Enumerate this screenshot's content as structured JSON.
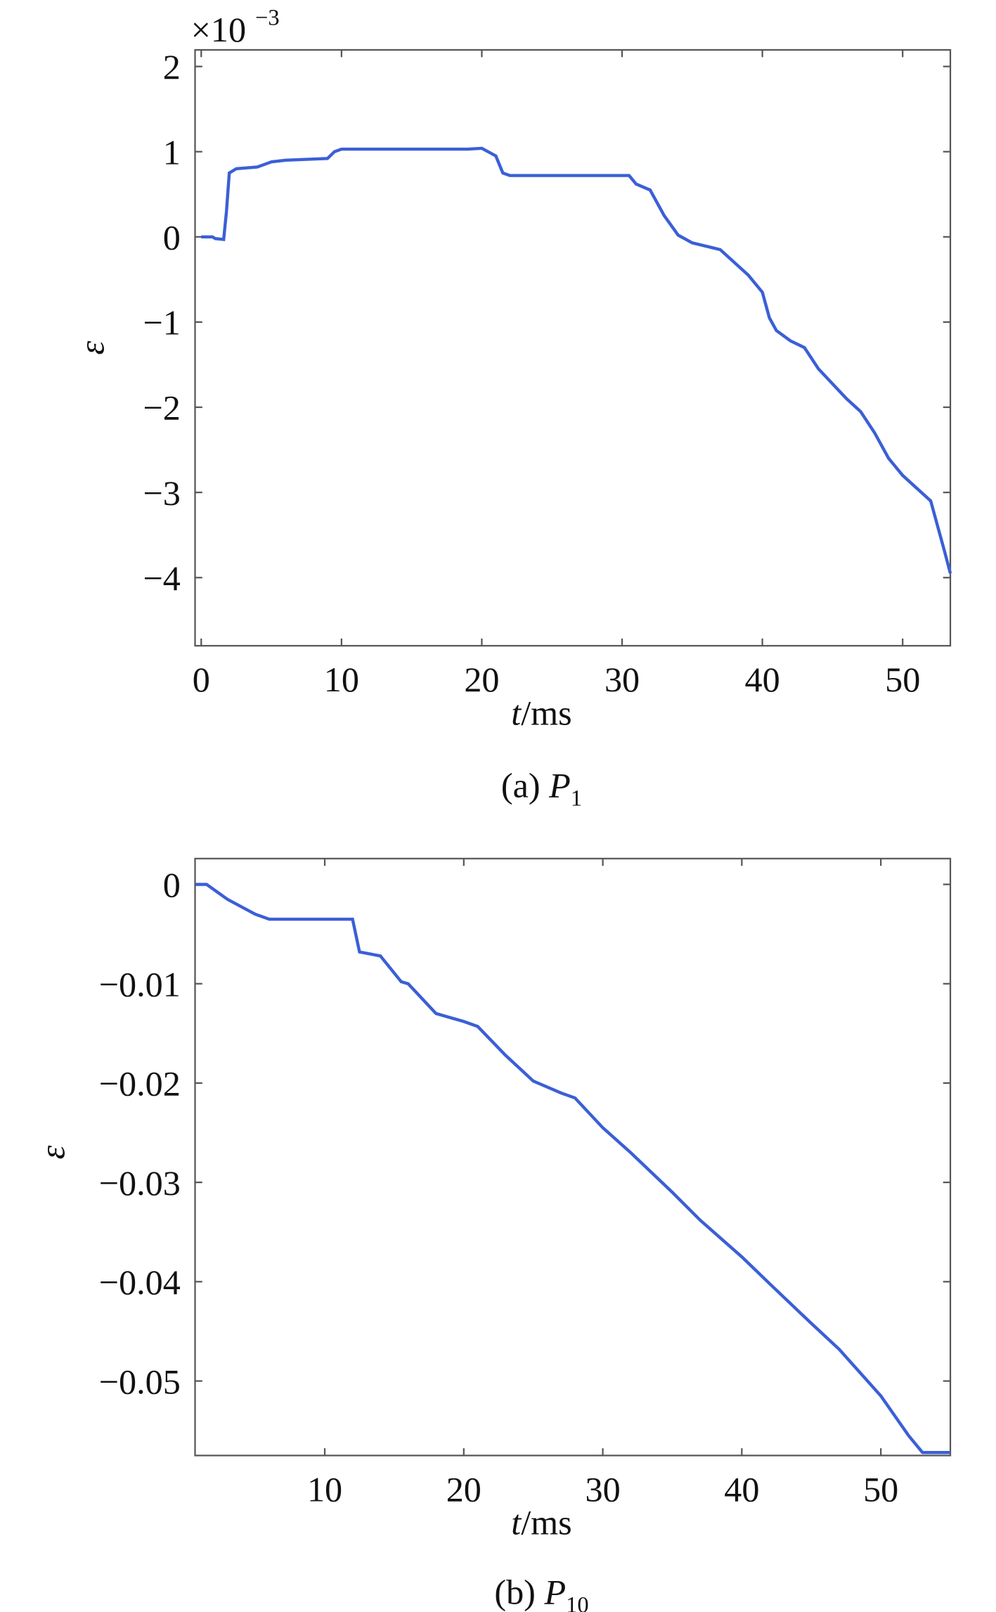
{
  "chart_data": [
    {
      "type": "line",
      "x": [
        0,
        0.8,
        1,
        1.6,
        1.8,
        2,
        2.5,
        4,
        5,
        6,
        9,
        9.5,
        10,
        19,
        20,
        21,
        21.5,
        22,
        30.5,
        31,
        32,
        33,
        34,
        35,
        37,
        38,
        39,
        40,
        40.5,
        41,
        42,
        43,
        44,
        46,
        47,
        48,
        49,
        50,
        52,
        53,
        53.4
      ],
      "series": [
        {
          "color": "#3b5fd6",
          "values": [
            0,
            0,
            -0.02,
            -0.03,
            0.3,
            0.75,
            0.8,
            0.82,
            0.88,
            0.9,
            0.92,
            1.0,
            1.03,
            1.03,
            1.04,
            0.95,
            0.75,
            0.72,
            0.72,
            0.62,
            0.55,
            0.25,
            0.02,
            -0.07,
            -0.15,
            -0.3,
            -0.45,
            -0.65,
            -0.95,
            -1.1,
            -1.22,
            -1.3,
            -1.55,
            -1.9,
            -2.05,
            -2.3,
            -2.6,
            -2.8,
            -3.1,
            -3.7,
            -3.95
          ]
        }
      ],
      "xlim": [
        -0.44,
        53.4
      ],
      "ylim": [
        -4.8,
        2.195
      ],
      "xticks": [
        0,
        10,
        20,
        30,
        40,
        50
      ],
      "yticks": [
        2,
        1,
        0,
        {
          "value": -1,
          "label": "−1"
        },
        {
          "value": -2,
          "label": "−2"
        },
        {
          "value": -3,
          "label": "−3"
        },
        {
          "value": -4,
          "label": "−4"
        }
      ],
      "y_multiplier_base": "×10",
      "y_multiplier_exponent": "−3",
      "xlabel_var": "t",
      "xlabel_unit": "/ms",
      "ylabel": "ε",
      "caption_label": "(a)",
      "caption_symbol": "P",
      "caption_subscript": "1"
    },
    {
      "type": "line",
      "x": [
        0.7,
        1.5,
        3,
        5,
        6,
        12,
        12.5,
        14,
        15.5,
        16,
        18,
        20,
        21,
        23,
        25,
        27,
        28,
        30,
        32,
        35,
        37,
        40,
        42,
        45,
        47,
        50,
        52,
        53,
        55
      ],
      "series": [
        {
          "color": "#3b5fd6",
          "values": [
            0,
            0,
            -0.0015,
            -0.003,
            -0.0035,
            -0.0035,
            -0.0068,
            -0.0072,
            -0.0098,
            -0.01,
            -0.013,
            -0.0138,
            -0.0143,
            -0.0172,
            -0.0198,
            -0.021,
            -0.0215,
            -0.0245,
            -0.027,
            -0.031,
            -0.0338,
            -0.0375,
            -0.0402,
            -0.0442,
            -0.0468,
            -0.0515,
            -0.0555,
            -0.0572,
            -0.0572
          ]
        }
      ],
      "xlim": [
        0.67,
        55.0
      ],
      "ylim": [
        -0.0575,
        0.0026
      ],
      "xticks": [
        10,
        20,
        30,
        40,
        50
      ],
      "yticks": [
        0,
        {
          "value": -0.01,
          "label": "−0.01"
        },
        {
          "value": -0.02,
          "label": "−0.02"
        },
        {
          "value": -0.03,
          "label": "−0.03"
        },
        {
          "value": -0.04,
          "label": "−0.04"
        },
        {
          "value": -0.05,
          "label": "−0.05"
        }
      ],
      "xlabel_var": "t",
      "xlabel_unit": "/ms",
      "ylabel": "ε",
      "caption_label": "(b)",
      "caption_symbol": "P",
      "caption_subscript": "10"
    }
  ]
}
